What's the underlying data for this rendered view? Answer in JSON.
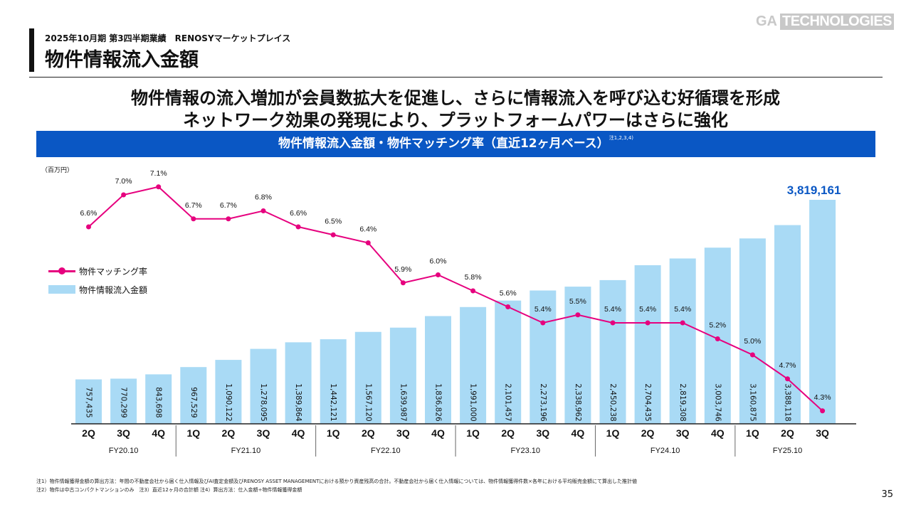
{
  "header": {
    "supertitle": "2025年10月期 第3四半期業績　RENOSYマーケットプレイス",
    "title": "物件情報流入金額",
    "logo_ga": "GA",
    "logo_tech": "TECHNOLOGIES"
  },
  "headline": {
    "line1": "物件情報の流入増加が会員数拡大を促進し、さらに情報流入を呼び込む好循環を形成",
    "line2": "ネットワーク効果の発現により、プラットフォームパワーはさらに強化"
  },
  "banner": {
    "text": "物件情報流入金額・物件マッチング率（直近12ヶ月ベース）",
    "note": "注1,2,3,4)"
  },
  "colors": {
    "bar": "#a9daf5",
    "line": "#e6007e",
    "banner": "#0a57c4",
    "highlight_label": "#0a57c4"
  },
  "legend": {
    "line_label": "物件マッチング率",
    "bar_label": "物件情報流入金額"
  },
  "chart_data": {
    "type": "bar",
    "unit_label": "（百万円）",
    "categories": [
      "2Q",
      "3Q",
      "4Q",
      "1Q",
      "2Q",
      "3Q",
      "4Q",
      "1Q",
      "2Q",
      "3Q",
      "4Q",
      "1Q",
      "2Q",
      "3Q",
      "4Q",
      "1Q",
      "2Q",
      "3Q",
      "4Q",
      "1Q",
      "2Q",
      "3Q"
    ],
    "fiscal_years": [
      {
        "label": "FY20.10",
        "count": 3
      },
      {
        "label": "FY21.10",
        "count": 4
      },
      {
        "label": "FY22.10",
        "count": 4
      },
      {
        "label": "FY23.10",
        "count": 4
      },
      {
        "label": "FY24.10",
        "count": 4
      },
      {
        "label": "FY25.10",
        "count": 3
      }
    ],
    "series": [
      {
        "name": "物件情報流入金額",
        "type": "bar",
        "values": [
          757435,
          770299,
          843698,
          967529,
          1090122,
          1278095,
          1389864,
          1442121,
          1567120,
          1639987,
          1836826,
          1991000,
          2101457,
          2273196,
          2338962,
          2450238,
          2704435,
          2819308,
          3003746,
          3160875,
          3388118,
          3819161
        ],
        "labels": [
          "757,435",
          "770,299",
          "843,698",
          "967,529",
          "1,090,122",
          "1,278,095",
          "1,389,864",
          "1,442,121",
          "1,567,120",
          "1,639,987",
          "1,836,826",
          "1,991,000",
          "2,101,457",
          "2,273,196",
          "2,338,962",
          "2,450,238",
          "2,704,435",
          "2,819,308",
          "3,003,746",
          "3,160,875",
          "3,388,118",
          "3,819,161"
        ]
      },
      {
        "name": "物件マッチング率",
        "type": "line",
        "values": [
          6.6,
          7.0,
          7.1,
          6.7,
          6.7,
          6.8,
          6.6,
          6.5,
          6.4,
          5.9,
          6.0,
          5.8,
          5.6,
          5.4,
          5.5,
          5.4,
          5.4,
          5.4,
          5.2,
          5.0,
          4.7,
          4.3
        ],
        "labels": [
          "6.6%",
          "7.0%",
          "7.1%",
          "6.7%",
          "6.7%",
          "6.8%",
          "6.6%",
          "6.5%",
          "6.4%",
          "5.9%",
          "6.0%",
          "5.8%",
          "5.6%",
          "5.4%",
          "5.5%",
          "5.4%",
          "5.4%",
          "5.4%",
          "5.2%",
          "5.0%",
          "4.7%",
          "4.3%"
        ]
      }
    ],
    "legend_position": "left",
    "grid": false
  },
  "footnotes": {
    "line1": "注1）物件情報獲得金額の算出方法：年間の不動産会社から届く仕入情報及びAI査定金額及びRENOSY ASSET MANAGEMENTにおける預かり資産残高の合計。不動産会社から届く仕入情報については、物件情報獲得件数×各年における平均販売金額にて算出した推計値",
    "line2": "注2）物件は中古コンパクトマンションのみ　注3）直近12ヶ月の合計額 注4）算出方法：仕入金額÷物件情報獲得金額"
  },
  "page_number": "35"
}
